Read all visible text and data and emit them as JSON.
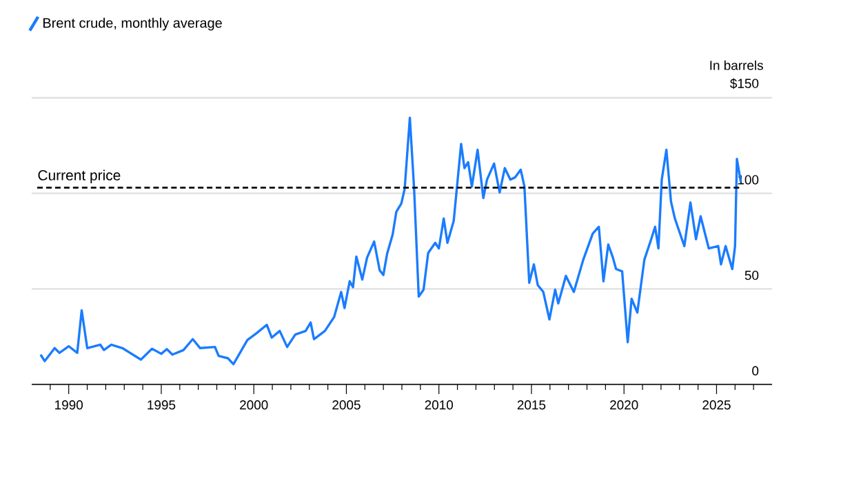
{
  "chart_data": {
    "type": "line",
    "ylabel": "In barrels",
    "series": [
      {
        "name": "Brent crude, monthly average",
        "color": "#1a7cff",
        "x": [
          1988.48,
          1988.7,
          1989.24,
          1989.5,
          1990.0,
          1990.46,
          1990.7,
          1991.0,
          1991.7,
          1991.9,
          1992.3,
          1992.9,
          1993.9,
          1994.5,
          1995.0,
          1995.3,
          1995.6,
          1996.2,
          1996.7,
          1997.1,
          1997.9,
          1998.1,
          1998.6,
          1998.9,
          1999.65,
          2000.15,
          2000.7,
          2000.97,
          2001.4,
          2001.8,
          2002.24,
          2002.8,
          2003.07,
          2003.25,
          2003.84,
          2004.34,
          2004.72,
          2004.9,
          2005.18,
          2005.36,
          2005.54,
          2005.86,
          2006.12,
          2006.5,
          2006.8,
          2007.0,
          2007.2,
          2007.5,
          2007.7,
          2007.97,
          2008.15,
          2008.43,
          2008.66,
          2008.91,
          2009.17,
          2009.42,
          2009.8,
          2010.0,
          2010.26,
          2010.46,
          2010.8,
          2011.2,
          2011.38,
          2011.58,
          2011.78,
          2012.09,
          2012.4,
          2012.6,
          2012.98,
          2013.28,
          2013.56,
          2013.86,
          2014.12,
          2014.42,
          2014.62,
          2014.88,
          2015.13,
          2015.34,
          2015.64,
          2015.97,
          2016.28,
          2016.45,
          2016.86,
          2017.29,
          2017.8,
          2018.31,
          2018.64,
          2018.89,
          2019.15,
          2019.4,
          2019.57,
          2019.9,
          2020.2,
          2020.41,
          2020.72,
          2021.1,
          2021.43,
          2021.68,
          2021.86,
          2022.04,
          2022.29,
          2022.54,
          2022.75,
          2023.26,
          2023.59,
          2023.89,
          2024.14,
          2024.58,
          2025.09,
          2025.24,
          2025.49,
          2025.85,
          2026.0,
          2026.1,
          2026.31
        ],
        "values": [
          15.6,
          12.2,
          19,
          16.5,
          20,
          16.5,
          38.8,
          19,
          20.8,
          18,
          20.8,
          19,
          13,
          18.7,
          16,
          18.5,
          15.6,
          18,
          23.7,
          19,
          19.6,
          14.9,
          13.7,
          10.6,
          23.2,
          26.8,
          31.2,
          24.5,
          28,
          19.6,
          26.1,
          28,
          32.4,
          23.7,
          28,
          35.3,
          48.4,
          40,
          54,
          50.9,
          66.9,
          54.9,
          66.4,
          74.8,
          59.7,
          57.3,
          68.3,
          78.4,
          90.4,
          94.7,
          102.4,
          139.6,
          102.4,
          46,
          49.6,
          68.8,
          74.1,
          71.2,
          86.8,
          74.1,
          85.6,
          125.9,
          113.2,
          116.3,
          103.6,
          122.8,
          97.6,
          107.2,
          115.6,
          100.5,
          113.2,
          107.2,
          108.4,
          112.4,
          103.6,
          53.2,
          62.8,
          52,
          48.4,
          34,
          49.6,
          42.4,
          56.8,
          48.4,
          65.3,
          78.9,
          82.5,
          54,
          73.2,
          66.4,
          60.4,
          59.2,
          22.1,
          44.8,
          37.6,
          65.3,
          74.8,
          82.5,
          71.2,
          107.2,
          122.8,
          95.7,
          86.8,
          72.4,
          95.2,
          76,
          88,
          71.2,
          72.4,
          62.8,
          72.4,
          60.4,
          72.4,
          118,
          106
        ]
      }
    ],
    "xlim": [
      1988,
      2028
    ],
    "xticks": [
      {
        "value": 1989,
        "label": null
      },
      1990,
      {
        "value": 1991,
        "label": null
      },
      {
        "value": 1992,
        "label": null
      },
      {
        "value": 1993,
        "label": null
      },
      {
        "value": 1994,
        "label": null
      },
      1995,
      {
        "value": 1996,
        "label": null
      },
      {
        "value": 1997,
        "label": null
      },
      {
        "value": 1998,
        "label": null
      },
      {
        "value": 1999,
        "label": null
      },
      2000,
      {
        "value": 2001,
        "label": null
      },
      {
        "value": 2002,
        "label": null
      },
      {
        "value": 2003,
        "label": null
      },
      {
        "value": 2004,
        "label": null
      },
      2005,
      {
        "value": 2006,
        "label": null
      },
      {
        "value": 2007,
        "label": null
      },
      {
        "value": 2008,
        "label": null
      },
      {
        "value": 2009,
        "label": null
      },
      2010,
      {
        "value": 2011,
        "label": null
      },
      {
        "value": 2012,
        "label": null
      },
      {
        "value": 2013,
        "label": null
      },
      {
        "value": 2014,
        "label": null
      },
      2015,
      {
        "value": 2016,
        "label": null
      },
      {
        "value": 2017,
        "label": null
      },
      {
        "value": 2018,
        "label": null
      },
      {
        "value": 2019,
        "label": null
      },
      2020,
      {
        "value": 2021,
        "label": null
      },
      {
        "value": 2022,
        "label": null
      },
      {
        "value": 2023,
        "label": null
      },
      {
        "value": 2024,
        "label": null
      },
      2025,
      {
        "value": 2026,
        "label": null
      },
      {
        "value": 2027,
        "label": null
      }
    ],
    "ylim": [
      0,
      150
    ],
    "yticks": [
      0,
      50,
      100,
      {
        "value": 150,
        "label": "$150"
      }
    ],
    "grid": "y",
    "legend": "top left",
    "marker": "none",
    "line_style": "solid",
    "ref_lines": [
      {
        "axis": "y",
        "value": 103,
        "label": "Current price",
        "color": "#000000",
        "line_style": "dashed"
      }
    ]
  }
}
